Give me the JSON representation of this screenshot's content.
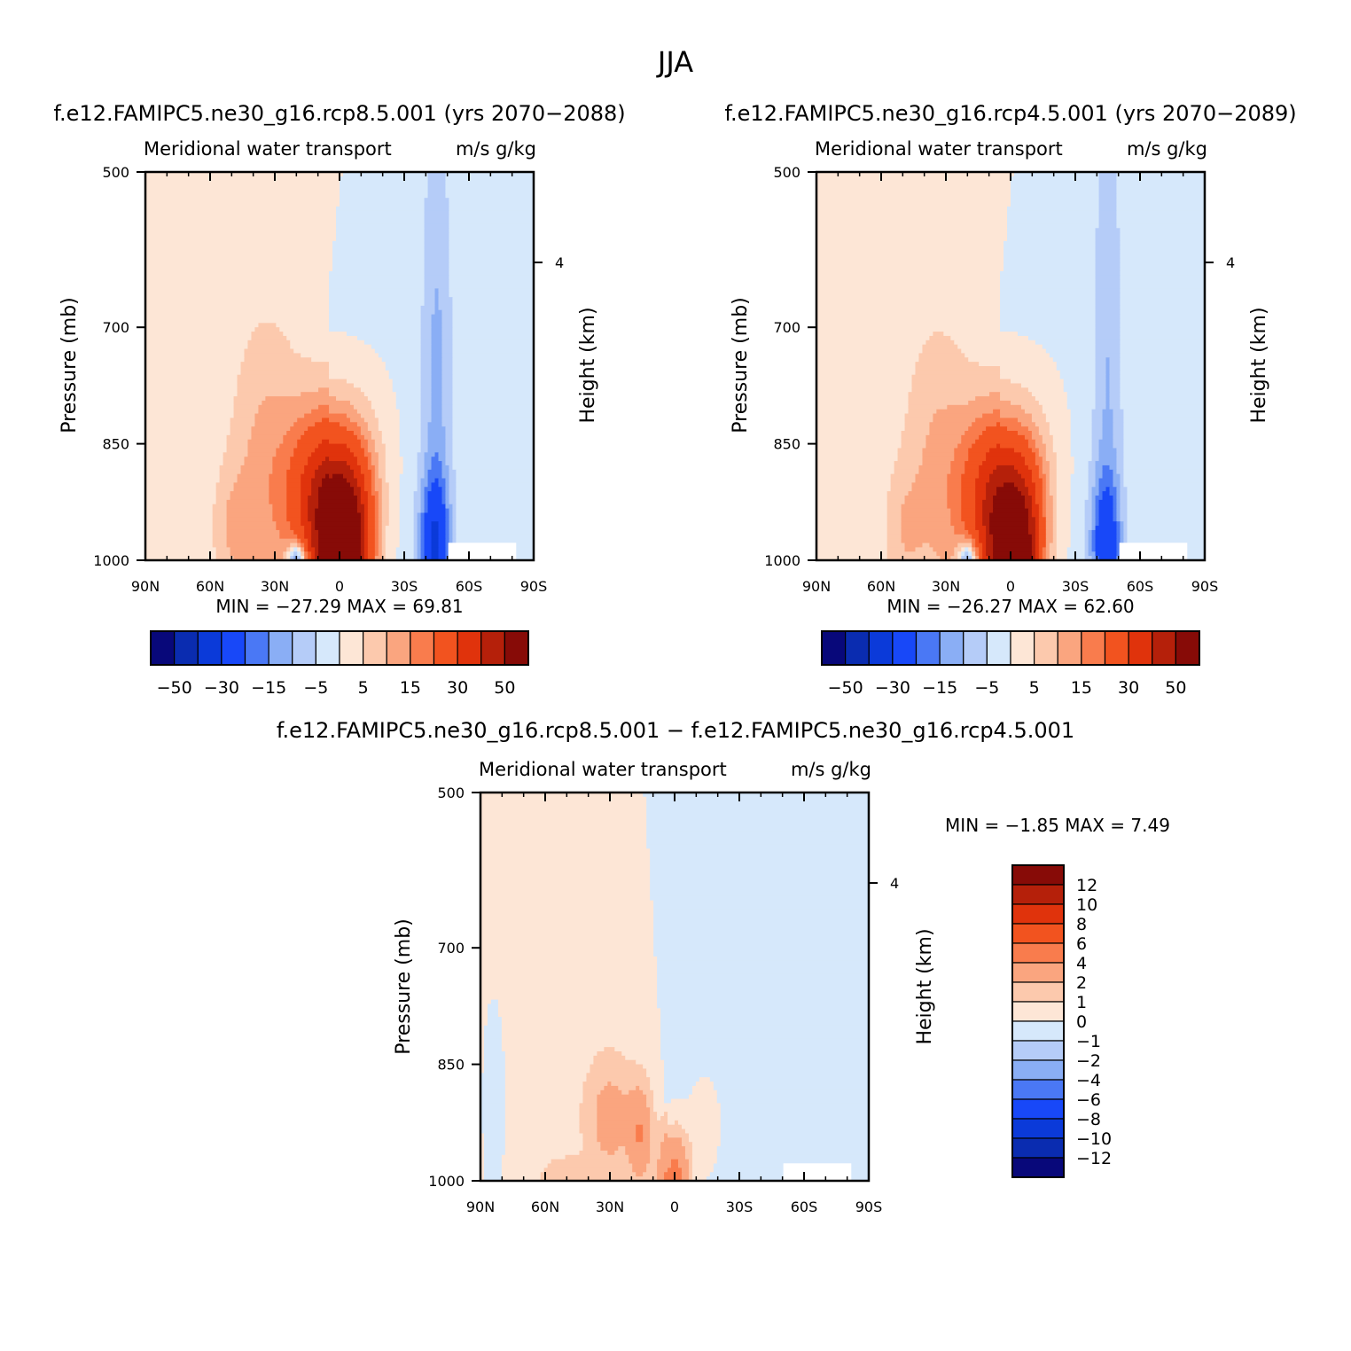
{
  "page": {
    "title": "JJA",
    "diff_title": "f.e12.FAMIPC5.ne30_g16.rcp8.5.001 − f.e12.FAMIPC5.ne30_g16.rcp4.5.001"
  },
  "chart_data": [
    {
      "type": "heatmap",
      "title": "f.e12.FAMIPC5.ne30_g16.rcp8.5.001 (yrs 2070−2088)",
      "left_subtitle": "Meridional water transport",
      "right_subtitle": "m/s g/kg",
      "ylabel": "Pressure (mb)",
      "y2label": "Height (km)",
      "x_ticks": [
        "90N",
        "60N",
        "30N",
        "0",
        "30S",
        "60S",
        "90S"
      ],
      "y_ticks": [
        "500",
        "700",
        "850",
        "1000"
      ],
      "y2_ticks": [
        "4"
      ],
      "stats": "MIN =  −27.29   MAX =   69.81",
      "min": -27.29,
      "max": 69.81,
      "colorbar_labels": [
        "−50",
        "−30",
        "−15",
        "−5",
        "5",
        "15",
        "30",
        "50"
      ],
      "scale": 1.0
    },
    {
      "type": "heatmap",
      "title": "f.e12.FAMIPC5.ne30_g16.rcp4.5.001 (yrs 2070−2089)",
      "left_subtitle": "Meridional water transport",
      "right_subtitle": "m/s g/kg",
      "ylabel": "Pressure (mb)",
      "y2label": "Height (km)",
      "x_ticks": [
        "90N",
        "60N",
        "30N",
        "0",
        "30S",
        "60S",
        "90S"
      ],
      "y_ticks": [
        "500",
        "700",
        "850",
        "1000"
      ],
      "y2_ticks": [
        "4"
      ],
      "stats": "MIN =  −26.27   MAX =   62.60",
      "min": -26.27,
      "max": 62.6,
      "colorbar_labels": [
        "−50",
        "−30",
        "−15",
        "−5",
        "5",
        "15",
        "30",
        "50"
      ],
      "scale": 0.9
    },
    {
      "type": "heatmap",
      "title": "",
      "left_subtitle": "Meridional water transport",
      "right_subtitle": "m/s g/kg",
      "ylabel": "Pressure (mb)",
      "y2label": "Height (km)",
      "x_ticks": [
        "90N",
        "60N",
        "30N",
        "0",
        "30S",
        "60S",
        "90S"
      ],
      "y_ticks": [
        "500",
        "700",
        "850",
        "1000"
      ],
      "y2_ticks": [
        "4"
      ],
      "stats": "MIN =   −1.85   MAX =    7.49",
      "min": -1.85,
      "max": 7.49,
      "colorbar_labels": [
        "12",
        "10",
        "8",
        "6",
        "4",
        "2",
        "1",
        "0",
        "−1",
        "−2",
        "−4",
        "−6",
        "−8",
        "−10",
        "−12"
      ],
      "scale": 0.12
    }
  ],
  "colors": {
    "palette": [
      "#08087a",
      "#0a2cb0",
      "#0b3ad9",
      "#1848f8",
      "#4a78f5",
      "#8aaef5",
      "#b5ccf8",
      "#d6e8fb",
      "#fde6d6",
      "#fcc9ad",
      "#faa57f",
      "#f97c4d",
      "#f2531f",
      "#e0330c",
      "#b5200a",
      "#870b07"
    ],
    "diff_palette": [
      "#08087a",
      "#0a2cb0",
      "#0b3ad9",
      "#1848f8",
      "#4a78f5",
      "#8aaef5",
      "#b5ccf8",
      "#d6e8fb",
      "#fde6d6",
      "#fcc9ad",
      "#faa57f",
      "#f97c4d",
      "#f2531f",
      "#e0330c",
      "#b5200a",
      "#870b07"
    ]
  }
}
